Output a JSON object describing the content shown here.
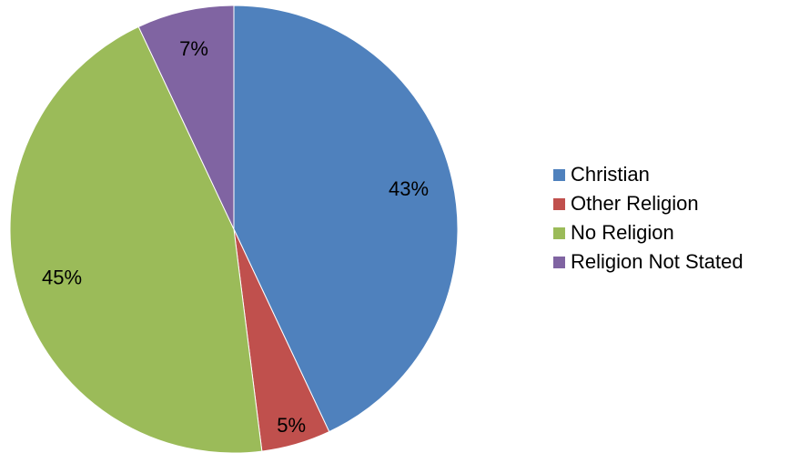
{
  "chart_data": {
    "type": "pie",
    "categories": [
      "Christian",
      "Other Religion",
      "No Religion",
      "Religion Not Stated"
    ],
    "values": [
      43,
      5,
      45,
      7
    ],
    "labels": [
      "43%",
      "5%",
      "45%",
      "7%"
    ],
    "colors": [
      "#4F81BD",
      "#C0504D",
      "#9BBB59",
      "#8064A2"
    ],
    "start_angle": "12 o'clock",
    "direction": "clockwise",
    "legend_position": "right"
  }
}
